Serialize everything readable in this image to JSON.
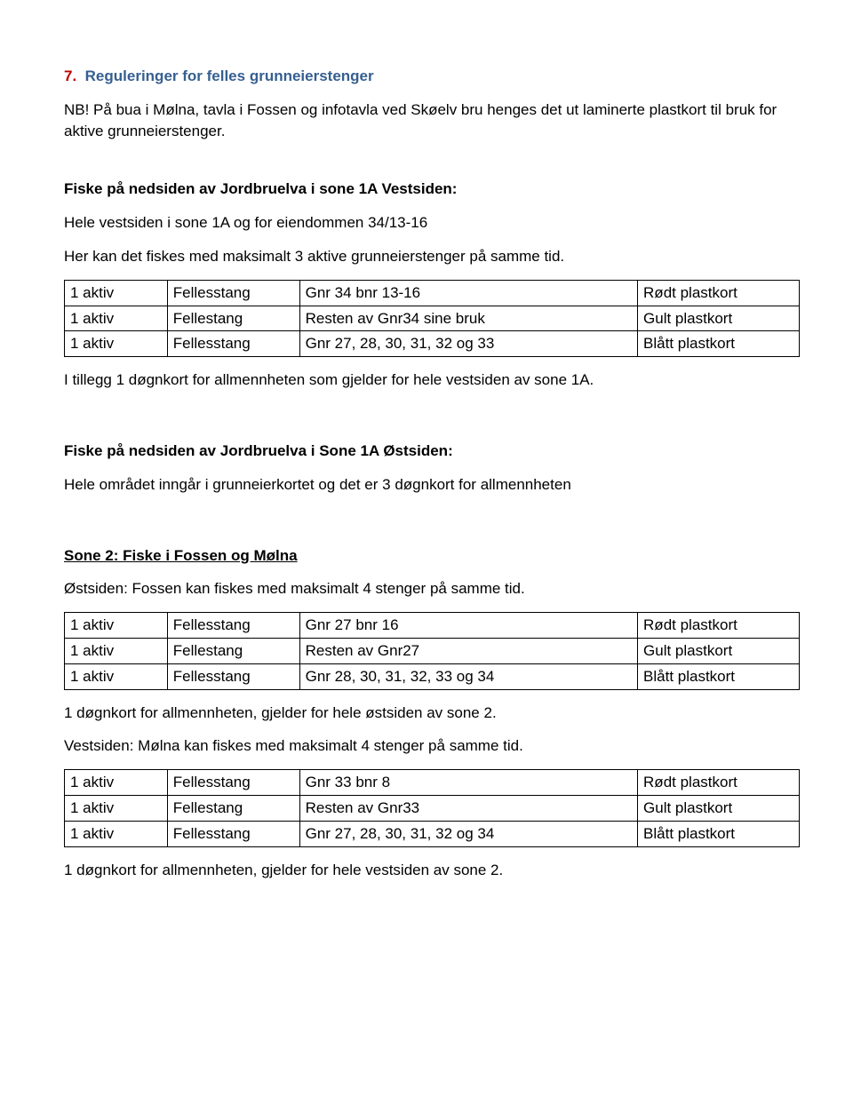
{
  "heading": {
    "num": "7.",
    "text": "Reguleringer for felles grunneierstenger"
  },
  "intro_nb": "NB! På bua i Mølna, tavla i Fossen og infotavla ved Skøelv bru henges det ut laminerte plastkort til bruk for aktive grunneierstenger.",
  "sec1": {
    "title": "Fiske på nedsiden av Jordbruelva i sone 1A Vestsiden:",
    "p1": "Hele vestsiden i sone 1A og for eiendommen 34/13-16",
    "p2": "Her kan det fiskes med maksimalt 3 aktive grunneierstenger på samme tid.",
    "table": {
      "rows": [
        [
          "1 aktiv",
          "Fellesstang",
          "Gnr 34 bnr 13-16",
          "Rødt plastkort"
        ],
        [
          "1 aktiv",
          "Fellestang",
          "Resten av Gnr34 sine bruk",
          "Gult plastkort"
        ],
        [
          "1 aktiv",
          "Fellesstang",
          "Gnr 27, 28, 30, 31, 32 og 33",
          "Blått plastkort"
        ]
      ]
    },
    "after": "I tillegg 1 døgnkort for allmennheten som gjelder for hele vestsiden av sone 1A."
  },
  "sec2": {
    "title": "Fiske på nedsiden av Jordbruelva i Sone 1A Østsiden:",
    "p1": "Hele området inngår i grunneierkortet og det er 3 døgnkort for allmennheten"
  },
  "sec3": {
    "title": "Sone 2: Fiske i Fossen og Mølna",
    "p1": "Østsiden: Fossen kan fiskes med maksimalt 4 stenger på samme tid.",
    "table1": {
      "rows": [
        [
          "1 aktiv",
          "Fellesstang",
          "Gnr 27 bnr 16",
          "Rødt plastkort"
        ],
        [
          "1 aktiv",
          "Fellestang",
          "Resten av Gnr27",
          "Gult plastkort"
        ],
        [
          "1 aktiv",
          "Fellesstang",
          "Gnr 28, 30, 31, 32, 33 og 34",
          "Blått plastkort"
        ]
      ]
    },
    "mid1": "1 døgnkort for allmennheten, gjelder for hele østsiden av sone 2.",
    "mid2": "Vestsiden: Mølna kan fiskes med maksimalt 4 stenger på samme tid.",
    "table2": {
      "rows": [
        [
          "1 aktiv",
          "Fellesstang",
          "Gnr 33 bnr 8",
          "Rødt plastkort"
        ],
        [
          "1 aktiv",
          "Fellestang",
          "Resten av Gnr33",
          "Gult plastkort"
        ],
        [
          "1 aktiv",
          "Fellesstang",
          "Gnr 27, 28, 30, 31, 32 og 34",
          "Blått plastkort"
        ]
      ]
    },
    "after": "1 døgnkort for allmennheten, gjelder for hele vestsiden av sone 2."
  }
}
